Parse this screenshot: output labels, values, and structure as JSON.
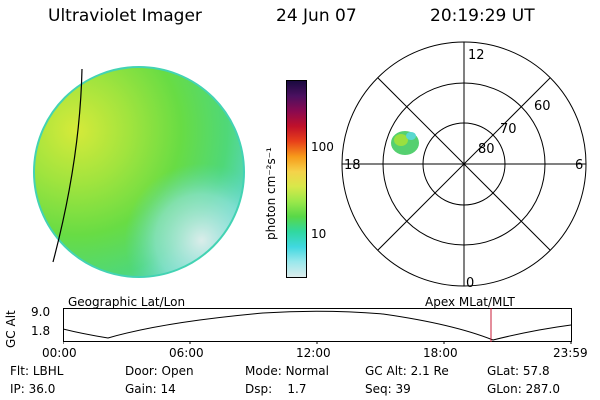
{
  "header": {
    "instrument": "Ultraviolet Imager",
    "date": "24 Jun 07",
    "time": "20:19:29 UT"
  },
  "colorbar": {
    "unit_label": "photon cm⁻²s⁻¹",
    "ticks": [
      "100",
      "10"
    ],
    "colors": [
      "#1a0a40",
      "#4b1060",
      "#8a0a50",
      "#c0102a",
      "#e8401a",
      "#f79a1a",
      "#f5d24a",
      "#d8e84a",
      "#9be84a",
      "#58d848",
      "#30d8a0",
      "#40d8e0",
      "#9ae8ec",
      "#dcecec"
    ]
  },
  "polar": {
    "clock_labels": {
      "top": "12",
      "left": "18",
      "right": "6",
      "bottom": "0"
    },
    "lat_labels": [
      "60",
      "70",
      "80"
    ]
  },
  "strip": {
    "ylabel": "GC Alt",
    "yticks": [
      "9.0",
      "1.8"
    ],
    "left_title": "Geographic Lat/Lon",
    "right_title": "Apex MLat/MLT",
    "xticks": [
      "00:00",
      "06:00",
      "12:00",
      "18:00",
      "23:59"
    ]
  },
  "info": {
    "row1": [
      {
        "key": "Flt:",
        "value": "LBHL"
      },
      {
        "key": "Door:",
        "value": "Open"
      },
      {
        "key": "Mode:",
        "value": "Normal"
      },
      {
        "key": "GC Alt:",
        "value": "2.1 Re"
      },
      {
        "key": "GLat:",
        "value": "57.8"
      }
    ],
    "row2": [
      {
        "key": "IP:",
        "value": "36.0"
      },
      {
        "key": "Gain:",
        "value": "14"
      },
      {
        "key": "Dsp:",
        "value": "1.7"
      },
      {
        "key": "Seq:",
        "value": "39"
      },
      {
        "key": "GLon:",
        "value": "287.0"
      }
    ]
  }
}
